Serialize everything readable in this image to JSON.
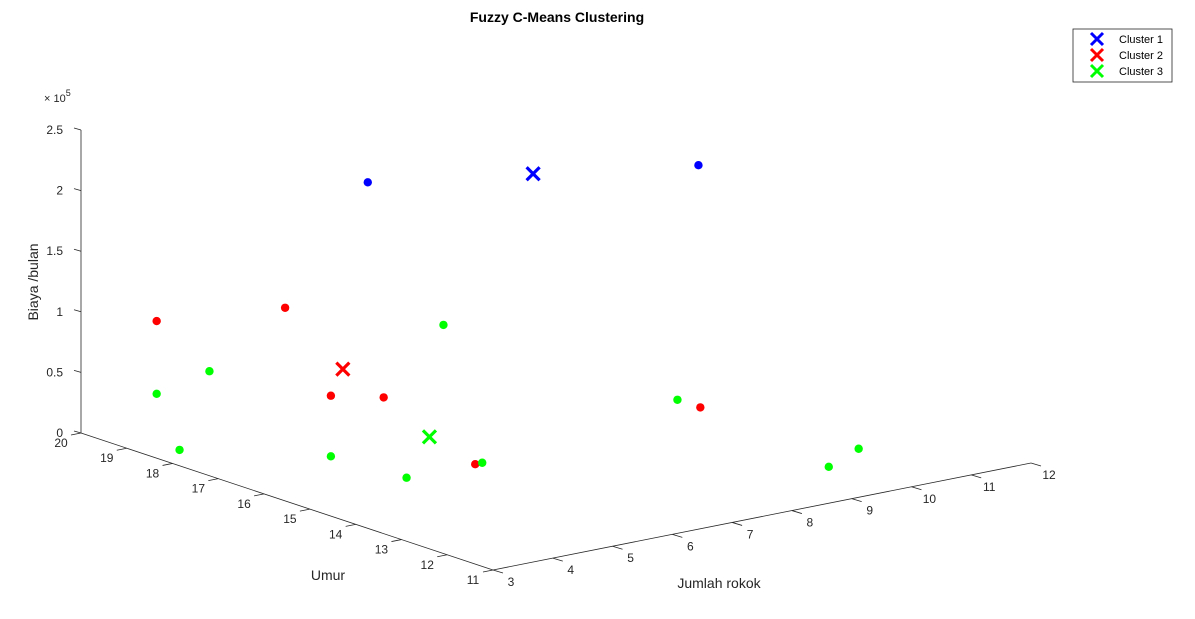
{
  "chart_data": {
    "type": "scatter",
    "title": "Fuzzy C-Means Clustering",
    "xlabel": "Jumlah rokok",
    "ylabel": "Umur",
    "zlabel": "Biaya /bulan",
    "z_exponent_base": "× 10",
    "z_exponent_power": "5",
    "xlim": [
      3,
      12
    ],
    "ylim": [
      11,
      20
    ],
    "zlim": [
      0,
      250000
    ],
    "x_ticks": [
      3,
      4,
      5,
      6,
      7,
      8,
      9,
      10,
      11,
      12
    ],
    "y_ticks": [
      11,
      12,
      13,
      14,
      15,
      16,
      17,
      18,
      19,
      20
    ],
    "z_ticks": [
      0,
      50000,
      100000,
      150000,
      200000,
      250000
    ],
    "z_tick_labels": [
      "0",
      "0.5",
      "1",
      "1.5",
      "2",
      "2.5"
    ],
    "grid": false,
    "legend_position": "top-right",
    "series": [
      {
        "name": "Cluster 1",
        "color": "#0000ff",
        "points": [
          {
            "x": 5.5,
            "y": 17.0,
            "z": 220000
          },
          {
            "x": 9.5,
            "y": 15.0,
            "z": 220000
          }
        ],
        "center": {
          "x": 7.5,
          "y": 16.0,
          "z": 220000
        }
      },
      {
        "name": "Cluster 2",
        "color": "#ff0000",
        "points": [
          {
            "x": 3.5,
            "y": 19.0,
            "z": 100000
          },
          {
            "x": 4.5,
            "y": 17.5,
            "z": 120000
          },
          {
            "x": 4.5,
            "y": 16.5,
            "z": 60000
          },
          {
            "x": 5.0,
            "y": 16.0,
            "z": 60000
          },
          {
            "x": 5.0,
            "y": 14.0,
            "z": 30000
          },
          {
            "x": 8.0,
            "y": 13.0,
            "z": 60000
          }
        ],
        "center": {
          "x": 4.7,
          "y": 16.5,
          "z": 80000
        }
      },
      {
        "name": "Cluster 3",
        "color": "#00ff00",
        "points": [
          {
            "x": 3.5,
            "y": 18.5,
            "z": 0
          },
          {
            "x": 3.5,
            "y": 19.0,
            "z": 40000
          },
          {
            "x": 4.0,
            "y": 18.5,
            "z": 60000
          },
          {
            "x": 4.5,
            "y": 16.5,
            "z": 10000
          },
          {
            "x": 5.0,
            "y": 15.5,
            "z": 0
          },
          {
            "x": 5.5,
            "y": 14.5,
            "z": 20000
          },
          {
            "x": 6.0,
            "y": 16.0,
            "z": 110000
          },
          {
            "x": 8.0,
            "y": 13.5,
            "z": 60000
          },
          {
            "x": 9.0,
            "y": 11.5,
            "z": 20000
          },
          {
            "x": 9.5,
            "y": 11.5,
            "z": 30000
          }
        ],
        "center": {
          "x": 5.0,
          "y": 15.0,
          "z": 40000
        }
      }
    ]
  }
}
